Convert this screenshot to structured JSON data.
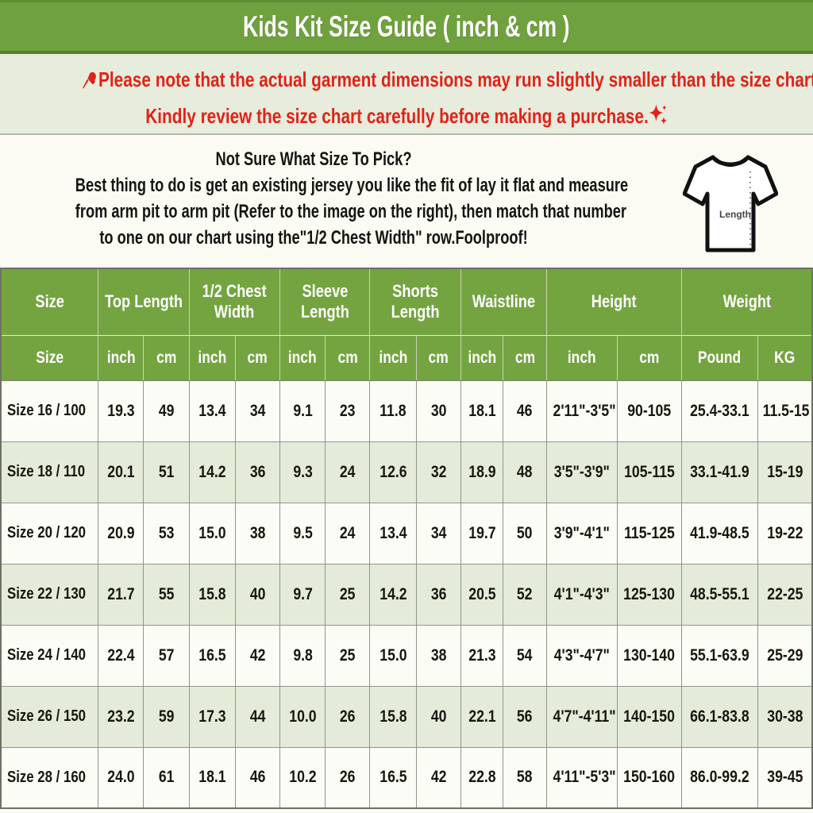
{
  "title": "Kids Kit Size Guide ( inch & cm )",
  "notice": {
    "line1": "Please note that the actual garment dimensions may run slightly smaller than the size chart ",
    "line1_period": " .",
    "line2": "Kindly review the size chart carefully before making a purchase.",
    "pin_icon": "pushpin-icon",
    "ruler_icon": "ruler-icon",
    "sparkles_icon": "sparkles-icon",
    "text_color": "#e02318",
    "background": "#e8ecdd"
  },
  "info": {
    "heading": "Not Sure What Size To Pick?",
    "line1": "Best thing to do is get an existing jersey you like the fit of lay it flat and measure",
    "line2": "from arm pit to arm pit (Refer to the image on the right), then match that number",
    "line3": "to one on our chart using the\"1/2 Chest Width\" row.Foolproof!",
    "shirt_icon": "tshirt-measure-icon",
    "shirt_label": "Length"
  },
  "colors": {
    "title_green": "#6fa23e",
    "table_header_green": "#74a440",
    "row_alt_green": "#e4ecd9",
    "row_white": "#fcfcf7",
    "notice_red": "#e02318"
  },
  "table": {
    "groups": [
      {
        "label": "Size",
        "span": 1
      },
      {
        "label": "Top Length",
        "span": 2
      },
      {
        "label": "1/2 Chest Width",
        "span": 2
      },
      {
        "label": "Sleeve Length",
        "span": 2
      },
      {
        "label": "Shorts Length",
        "span": 2
      },
      {
        "label": "Waistline",
        "span": 2
      },
      {
        "label": "Height",
        "span": 2
      },
      {
        "label": "Weight",
        "span": 2
      }
    ],
    "units": [
      "Size",
      "inch",
      "cm",
      "inch",
      "cm",
      "inch",
      "cm",
      "inch",
      "cm",
      "inch",
      "cm",
      "inch",
      "cm",
      "Pound",
      "KG"
    ],
    "rows": [
      [
        "Size 16 / 100",
        "19.3",
        "49",
        "13.4",
        "34",
        "9.1",
        "23",
        "11.8",
        "30",
        "18.1",
        "46",
        "2'11\"-3'5\"",
        "90-105",
        "25.4-33.1",
        "11.5-15"
      ],
      [
        "Size 18 / 110",
        "20.1",
        "51",
        "14.2",
        "36",
        "9.3",
        "24",
        "12.6",
        "32",
        "18.9",
        "48",
        "3'5\"-3'9\"",
        "105-115",
        "33.1-41.9",
        "15-19"
      ],
      [
        "Size 20 / 120",
        "20.9",
        "53",
        "15.0",
        "38",
        "9.5",
        "24",
        "13.4",
        "34",
        "19.7",
        "50",
        "3'9\"-4'1\"",
        "115-125",
        "41.9-48.5",
        "19-22"
      ],
      [
        "Size 22 / 130",
        "21.7",
        "55",
        "15.8",
        "40",
        "9.7",
        "25",
        "14.2",
        "36",
        "20.5",
        "52",
        "4'1\"-4'3\"",
        "125-130",
        "48.5-55.1",
        "22-25"
      ],
      [
        "Size 24 / 140",
        "22.4",
        "57",
        "16.5",
        "42",
        "9.8",
        "25",
        "15.0",
        "38",
        "21.3",
        "54",
        "4'3\"-4'7\"",
        "130-140",
        "55.1-63.9",
        "25-29"
      ],
      [
        "Size 26 / 150",
        "23.2",
        "59",
        "17.3",
        "44",
        "10.0",
        "26",
        "15.8",
        "40",
        "22.1",
        "56",
        "4'7\"-4'11\"",
        "140-150",
        "66.1-83.8",
        "30-38"
      ],
      [
        "Size 28 / 160",
        "24.0",
        "61",
        "18.1",
        "46",
        "10.2",
        "26",
        "16.5",
        "42",
        "22.8",
        "58",
        "4'11\"-5'3\"",
        "150-160",
        "86.0-99.2",
        "39-45"
      ]
    ]
  }
}
